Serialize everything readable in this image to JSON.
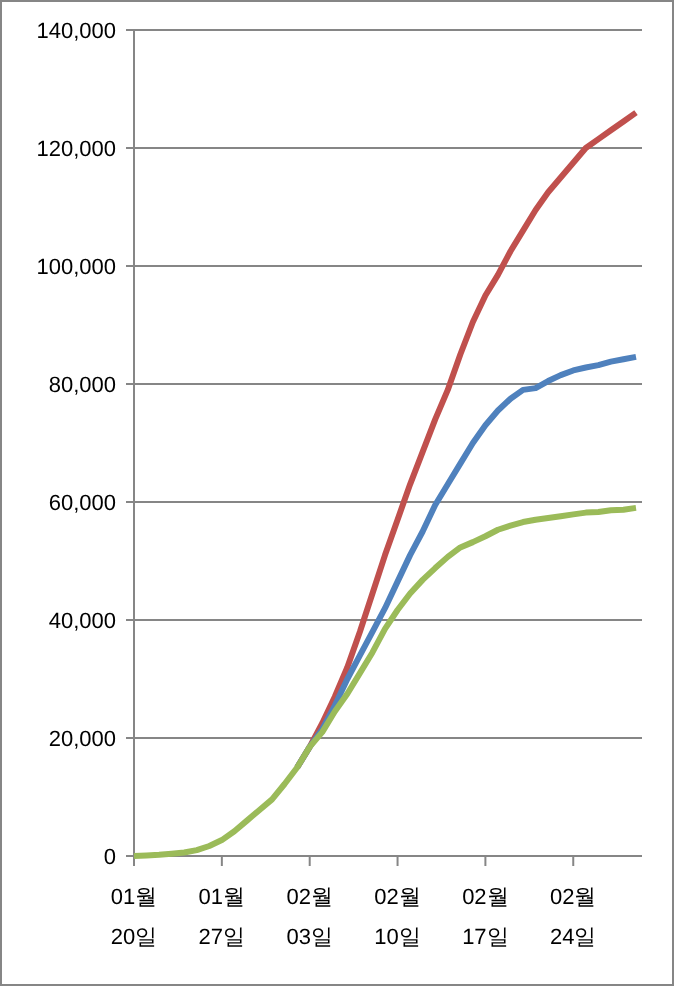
{
  "chart_data": {
    "type": "line",
    "categories": [
      "01월\n20일",
      null,
      null,
      null,
      null,
      null,
      null,
      "01월\n27일",
      null,
      null,
      null,
      null,
      null,
      null,
      "02월\n03일",
      null,
      null,
      null,
      null,
      null,
      null,
      "02월\n10일",
      null,
      null,
      null,
      null,
      null,
      null,
      "02월\n17일",
      null,
      null,
      null,
      null,
      null,
      null,
      "02월\n24일",
      null,
      null,
      null,
      null,
      null
    ],
    "series": [
      {
        "color": "#c0504d",
        "values": [
          null,
          null,
          null,
          null,
          null,
          null,
          null,
          null,
          null,
          null,
          null,
          null,
          null,
          15000,
          18500,
          22500,
          27000,
          32000,
          38000,
          44500,
          51000,
          57000,
          63000,
          68500,
          74000,
          79000,
          85000,
          90500,
          95000,
          98500,
          102500,
          106000,
          109500,
          112500,
          115000,
          117500,
          120000,
          121500,
          123000,
          124500,
          126000
        ]
      },
      {
        "color": "#4f81bd",
        "values": [
          null,
          null,
          null,
          null,
          null,
          null,
          null,
          null,
          null,
          null,
          null,
          null,
          null,
          15000,
          18500,
          21500,
          25500,
          30000,
          34000,
          38000,
          42000,
          46500,
          51000,
          55000,
          59500,
          63000,
          66500,
          70000,
          73000,
          75500,
          77500,
          79000,
          79300,
          80500,
          81500,
          82300,
          82800,
          83200,
          83800,
          84200,
          84600
        ]
      },
      {
        "color": "#9bbb59",
        "values": [
          0,
          100,
          200,
          400,
          600,
          1000,
          1700,
          2700,
          4200,
          6000,
          7800,
          9600,
          12200,
          15000,
          18500,
          21000,
          24500,
          27500,
          31000,
          34500,
          38500,
          41700,
          44500,
          46800,
          48800,
          50700,
          52300,
          53200,
          54200,
          55300,
          56000,
          56600,
          57000,
          57300,
          57600,
          57900,
          58200,
          58300,
          58600,
          58700,
          59000
        ]
      }
    ],
    "ylim": [
      0,
      140000
    ],
    "yticks": [
      {
        "value": 0,
        "label": "0"
      },
      {
        "value": 20000,
        "label": "20,000"
      },
      {
        "value": 40000,
        "label": "40,000"
      },
      {
        "value": 60000,
        "label": "60,000"
      },
      {
        "value": 80000,
        "label": "80,000"
      },
      {
        "value": 100000,
        "label": "100,000"
      },
      {
        "value": 120000,
        "label": "120,000"
      },
      {
        "value": 140000,
        "label": "140,000"
      }
    ],
    "grid": "y",
    "marker": "none",
    "line_style": "solid"
  }
}
